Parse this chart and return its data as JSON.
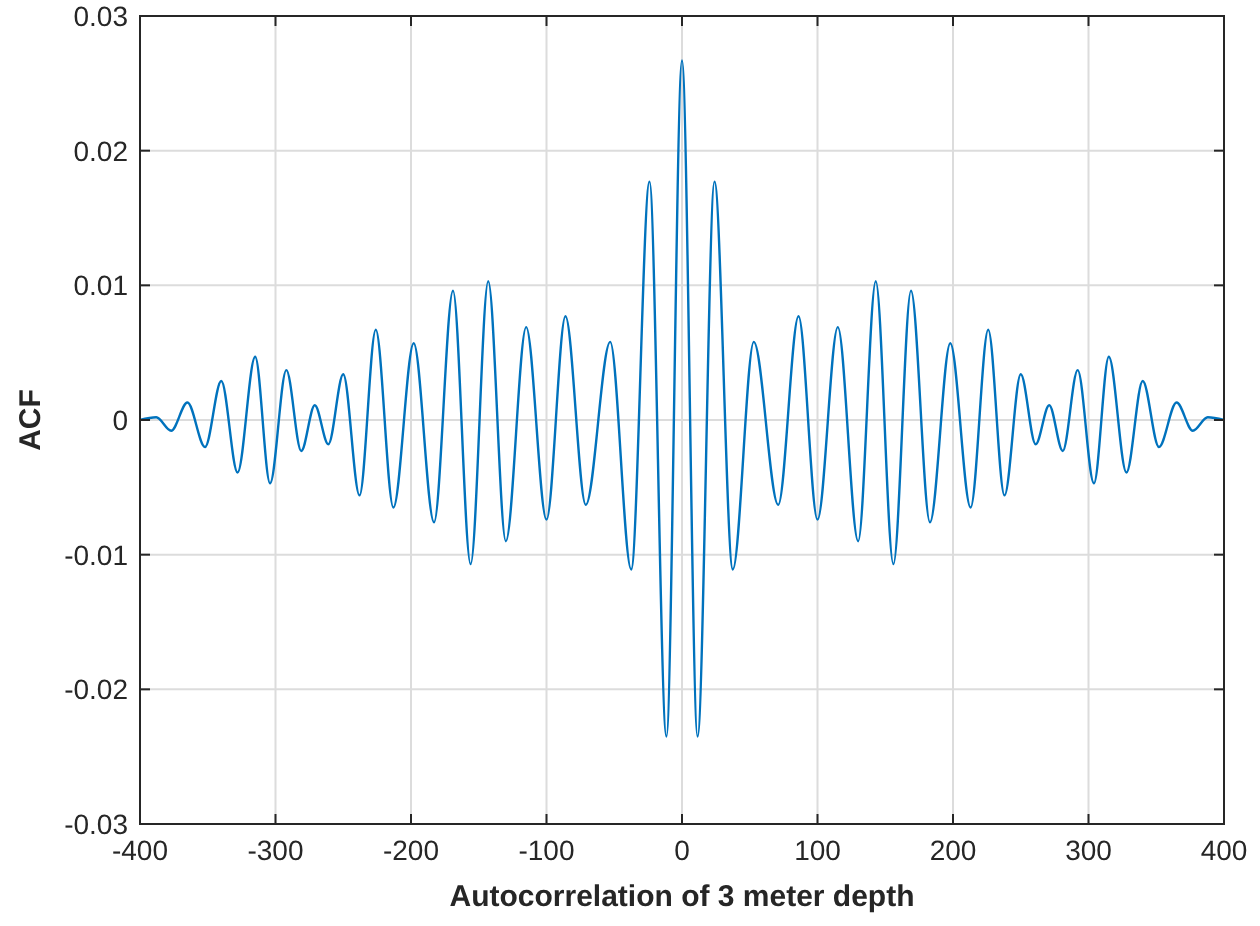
{
  "chart_data": {
    "type": "line",
    "xlabel": "Autocorrelation of 3 meter depth",
    "ylabel": "ACF",
    "x": [
      -400,
      -388,
      -377,
      -365,
      -352,
      -340,
      -328,
      -315,
      -304,
      -292,
      -281,
      -271,
      -261,
      -250,
      -238,
      -226,
      -213,
      -198,
      -183,
      -169,
      -156,
      -143,
      -130,
      -115,
      -100,
      -86,
      -71,
      -53,
      -37.5,
      -24,
      -11.5,
      0,
      11.5,
      24,
      37.5,
      53,
      71,
      86,
      100,
      115,
      130,
      143,
      156,
      169,
      183,
      198,
      213,
      226,
      238,
      250,
      261,
      271,
      281,
      292,
      304,
      315,
      328,
      340,
      352,
      365,
      377,
      388,
      400
    ],
    "series": [
      {
        "color": "#0072bd",
        "values": [
          0,
          0.0002,
          -0.0008,
          0.0013,
          -0.002,
          0.0029,
          -0.0039,
          0.0047,
          -0.0047,
          0.0037,
          -0.0023,
          0.0011,
          -0.0018,
          0.0034,
          -0.0056,
          0.0067,
          -0.0065,
          0.0057,
          -0.0076,
          0.0096,
          -0.0107,
          0.0103,
          -0.009,
          0.0069,
          -0.0074,
          0.0077,
          -0.0063,
          0.0058,
          -0.0111,
          0.0177,
          -0.0235,
          0.0267,
          -0.0235,
          0.0177,
          -0.0111,
          0.0058,
          -0.0063,
          0.0077,
          -0.0074,
          0.0069,
          -0.009,
          0.0103,
          -0.0107,
          0.0096,
          -0.0076,
          0.0057,
          -0.0065,
          0.0067,
          -0.0056,
          0.0034,
          -0.0018,
          0.0011,
          -0.0023,
          0.0037,
          -0.0047,
          0.0047,
          -0.0039,
          0.0029,
          -0.002,
          0.0013,
          -0.0008,
          0.0002,
          0
        ]
      }
    ],
    "xlim": [
      -400,
      400
    ],
    "xticks": [
      -400,
      -300,
      -200,
      -100,
      0,
      100,
      200,
      300,
      400
    ],
    "ylim": [
      -0.03,
      0.03
    ],
    "yticks": [
      -0.03,
      -0.02,
      -0.01,
      0,
      0.01,
      0.02,
      0.03
    ],
    "grid": true,
    "marker": "none",
    "line_style": "solid"
  }
}
